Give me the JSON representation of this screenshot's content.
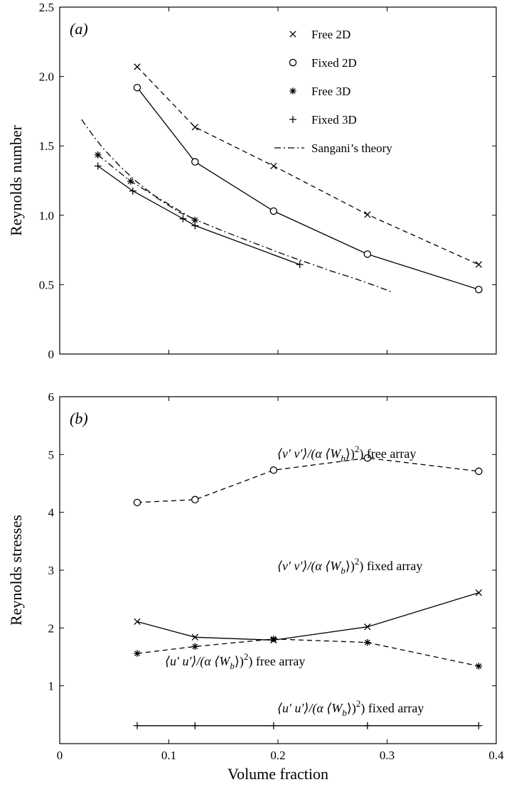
{
  "chart_data": [
    {
      "panel": "(a)",
      "type": "line",
      "ylabel": "Reynolds number",
      "xlim": [
        0,
        0.4
      ],
      "ylim": [
        0,
        2.5
      ],
      "xticks": [
        "0",
        "0.1",
        "0.2",
        "0.3",
        "0.4"
      ],
      "yticks": [
        "0",
        "0.5",
        "1.0",
        "1.5",
        "2.0",
        "2.5"
      ],
      "show_xtick_labels": false,
      "grid": false,
      "legend_position": "top-right",
      "series": [
        {
          "name": "Free 2D",
          "marker": "x",
          "line": "dashed",
          "x": [
            0.071,
            0.124,
            0.196,
            0.282,
            0.384
          ],
          "y": [
            2.07,
            1.635,
            1.355,
            1.005,
            0.645
          ]
        },
        {
          "name": "Fixed 2D",
          "marker": "o",
          "line": "solid",
          "x": [
            0.071,
            0.124,
            0.196,
            0.282,
            0.384
          ],
          "y": [
            1.92,
            1.385,
            1.03,
            0.72,
            0.465
          ]
        },
        {
          "name": "Free 3D",
          "marker": "*",
          "line": "dashdot",
          "x": [
            0.035,
            0.065,
            0.124
          ],
          "y": [
            1.435,
            1.245,
            0.965
          ]
        },
        {
          "name": "Fixed 3D",
          "marker": "+",
          "line": "solid",
          "x": [
            0.035,
            0.067,
            0.113,
            0.124,
            0.22
          ],
          "y": [
            1.355,
            1.175,
            0.975,
            0.925,
            0.645
          ]
        },
        {
          "name": "Sangani’s theory",
          "marker": "none",
          "line": "dashdot",
          "x": [
            0.02,
            0.03,
            0.04,
            0.055,
            0.07,
            0.09,
            0.11,
            0.13,
            0.15,
            0.17,
            0.19,
            0.21,
            0.23,
            0.25,
            0.27,
            0.29,
            0.305
          ],
          "y": [
            1.69,
            1.58,
            1.48,
            1.355,
            1.245,
            1.12,
            1.02,
            0.95,
            0.885,
            0.825,
            0.765,
            0.705,
            0.65,
            0.595,
            0.545,
            0.49,
            0.445
          ]
        }
      ]
    },
    {
      "panel": "(b)",
      "type": "line",
      "xlabel": "Volume fraction",
      "ylabel": "Reynolds stresses",
      "xlim": [
        0,
        0.4
      ],
      "ylim": [
        0,
        6
      ],
      "xticks": [
        "0",
        "0.1",
        "0.2",
        "0.3",
        "0.4"
      ],
      "yticks": [
        "1",
        "2",
        "3",
        "4",
        "5",
        "6"
      ],
      "grid": false,
      "series": [
        {
          "name": "⟨v′ v′⟩/(α ⟨Wb⟩2) free array",
          "marker": "o",
          "line": "dashed",
          "x": [
            0.071,
            0.124,
            0.196,
            0.282,
            0.384
          ],
          "y": [
            4.17,
            4.22,
            4.73,
            4.94,
            4.71
          ]
        },
        {
          "name": "⟨v′ v′⟩/(α ⟨Wb⟩2) fixed array",
          "marker": "x",
          "line": "solid",
          "x": [
            0.071,
            0.124,
            0.196,
            0.282,
            0.384
          ],
          "y": [
            2.11,
            1.84,
            1.79,
            2.02,
            2.61
          ]
        },
        {
          "name": "⟨u′ u′⟩/(α ⟨Wb⟩2) free array",
          "marker": "*",
          "line": "dashed",
          "x": [
            0.071,
            0.124,
            0.196,
            0.282,
            0.384
          ],
          "y": [
            1.56,
            1.68,
            1.81,
            1.75,
            1.34
          ]
        },
        {
          "name": "⟨u′ u′⟩/(α ⟨Wb⟩2) fixed array",
          "marker": "+",
          "line": "solid",
          "x": [
            0.071,
            0.124,
            0.196,
            0.282,
            0.384
          ],
          "y": [
            0.31,
            0.31,
            0.31,
            0.31,
            0.31
          ]
        }
      ]
    }
  ],
  "legend_a": [
    {
      "label": "Free 2D",
      "marker": "x"
    },
    {
      "label": "Fixed 2D",
      "marker": "o"
    },
    {
      "label": "Free 3D",
      "marker": "*"
    },
    {
      "label": "Fixed 3D",
      "marker": "+"
    },
    {
      "label": "Sangani’s theory",
      "marker": "line-dashdot"
    }
  ],
  "annotations_b": [
    {
      "prefix": "⟨v′ v′⟩/(α ⟨W",
      "sub": "b",
      "mid": "⟩)",
      "sup": "2",
      "suffix": ") free array"
    },
    {
      "prefix": "⟨v′ v′⟩/(α ⟨W",
      "sub": "b",
      "mid": "⟩)",
      "sup": "2",
      "suffix": ") fixed array"
    },
    {
      "prefix": "⟨u′ u′⟩/(α ⟨W",
      "sub": "b",
      "mid": "⟩)",
      "sup": "2",
      "suffix": ") free array"
    },
    {
      "prefix": "⟨u′ u′⟩/(α ⟨W",
      "sub": "b",
      "mid": "⟩)",
      "sup": "2",
      "suffix": ") fixed array"
    }
  ]
}
